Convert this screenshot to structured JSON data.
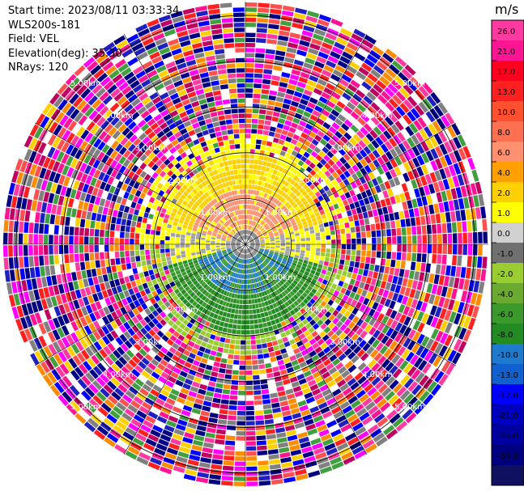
{
  "header": {
    "start_time": "Start time: 2023/08/11 03:33:34",
    "instrument": "WLS200s-181",
    "field": "Field: VEL",
    "elevation": "Elevation(deg): 35.30",
    "nrays": "NRays: 120"
  },
  "plot": {
    "n_rays": 120,
    "n_gates": 48,
    "range_rings_km": [
      1.0,
      2.0,
      3.0,
      4.0,
      5.0
    ],
    "max_range_km": 5.3,
    "ring_label": "km",
    "ring_labels": [
      "1.00km",
      "2.00km",
      "3.00km",
      "4.00km",
      "5.00km"
    ]
  },
  "colorbar": {
    "unit": "m/s",
    "ticks": [
      "26.0",
      "21.0",
      "17.0",
      "13.0",
      "10.0",
      "8.0",
      "6.0",
      "4.0",
      "2.0",
      "1.0",
      "0.0",
      "-1.0",
      "-2.0",
      "-4.0",
      "-6.0",
      "-8.0",
      "-10.0",
      "-13.0",
      "-17.0",
      "-21.0",
      "-26.0",
      "-30.0"
    ],
    "colors": [
      "#ff3aa0",
      "#ff1493",
      "#ff0020",
      "#ff2020",
      "#ff5030",
      "#ff7050",
      "#ff9070",
      "#ffa000",
      "#ffd000",
      "#ffff00",
      "#d0d0d0",
      "#707070",
      "#9acd32",
      "#6aaa30",
      "#3c9a2c",
      "#228b22",
      "#1e7acc",
      "#1060d0",
      "#0000ff",
      "#0000c0",
      "#0000a0",
      "#000080",
      "#101060"
    ]
  }
}
